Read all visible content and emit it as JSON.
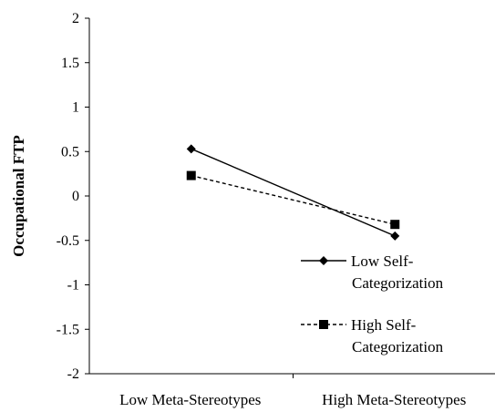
{
  "chart_data": {
    "type": "line",
    "categories": [
      "Low Meta-Stereotypes",
      "High Meta-Stereotypes"
    ],
    "series": [
      {
        "name": "Low Self-Categorization",
        "name_lines": [
          "Low Self-",
          "Categorization"
        ],
        "values": [
          0.53,
          -0.45
        ],
        "marker": "diamond",
        "line_style": "solid",
        "color": "#000000"
      },
      {
        "name": "High Self-Categorization",
        "name_lines": [
          "High Self-",
          "Categorization"
        ],
        "values": [
          0.23,
          -0.32
        ],
        "marker": "square",
        "line_style": "dashed",
        "color": "#000000"
      }
    ],
    "title": "",
    "xlabel": "",
    "ylabel": "Occupational FTP",
    "ylim": [
      -2,
      2
    ],
    "yticks": [
      2,
      1.5,
      1,
      0.5,
      0,
      -0.5,
      -1,
      -1.5,
      -2
    ],
    "ytick_labels": [
      "2",
      "1.5",
      "1",
      "0.5",
      "0",
      "-0.5",
      "-1",
      "-1.5",
      "-2"
    ],
    "grid": false,
    "legend_position": "right"
  }
}
